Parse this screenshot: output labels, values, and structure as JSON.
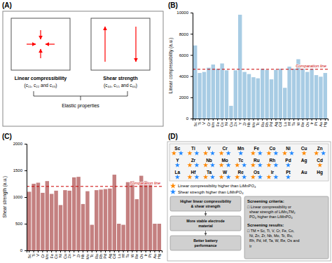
{
  "chart_data": [
    {
      "type": "diagram",
      "title": "(A)",
      "color": "red",
      "annotations": [
        "Linear compressibility",
        "(c₁₁, c₂₂ and c₃₃)",
        "Shear strength",
        "(c₄₄, c₅₅ and c₆₆)",
        "Elastic properties"
      ]
    },
    {
      "type": "bar",
      "title": "(B)",
      "categories": [
        "Sc",
        "Ti",
        "V",
        "Cr",
        "Mn",
        "Fe",
        "Co",
        "Ni",
        "Cu",
        "Zn",
        "Y",
        "Zr",
        "Nb",
        "Mo",
        "Tc",
        "Ru",
        "Rh",
        "Pd",
        "Ag",
        "Cd",
        "La",
        "Hf",
        "Ta",
        "W",
        "Re",
        "Os",
        "Ir",
        "Pt",
        "Au",
        "Hg"
      ],
      "values": [
        6900,
        4300,
        4400,
        4800,
        5100,
        4700,
        5200,
        4550,
        1200,
        4550,
        9800,
        4400,
        4200,
        3900,
        3800,
        4700,
        4600,
        3700,
        4600,
        4700,
        2900,
        4900,
        4700,
        5600,
        4700,
        4400,
        4700,
        4100,
        3950,
        4300
      ],
      "color": "#a8cce4",
      "ylabel": "Linear compressibility (a.u.)",
      "ylim": [
        0,
        10000
      ],
      "yticks": [
        0,
        2000,
        4000,
        6000,
        8000,
        10000
      ],
      "reference_line": {
        "value": 4650,
        "label": "Comparation line",
        "color": "#cc0000"
      }
    },
    {
      "type": "bar",
      "title": "(C)",
      "categories": [
        "Sc",
        "Ti",
        "V",
        "Cr",
        "Mn",
        "Fe",
        "Co",
        "Ni",
        "Cu",
        "Zn",
        "Y",
        "Zr",
        "Nb",
        "Mo",
        "Tc",
        "Ru",
        "Rh",
        "Pd",
        "Ag",
        "Cd",
        "La",
        "Hf",
        "Ta",
        "W",
        "Re",
        "Os",
        "Ir",
        "Pt",
        "Au",
        "Hg"
      ],
      "values": [
        1100,
        1250,
        1270,
        1080,
        1300,
        1060,
        1120,
        850,
        1130,
        1120,
        1370,
        1380,
        870,
        1110,
        480,
        1130,
        1140,
        1150,
        1160,
        1420,
        500,
        480,
        1280,
        1300,
        960,
        1400,
        1300,
        1260,
        500,
        500
      ],
      "color": "#c48080",
      "ylabel": "Shear strength (a.u.)",
      "ylim": [
        0,
        2000
      ],
      "yticks": [
        0,
        500,
        1000,
        1500,
        2000
      ],
      "reference_line": {
        "value": 1200,
        "label": "Comparation line",
        "color": "#cc0000"
      }
    },
    {
      "type": "table",
      "title": "(D)",
      "categories": [
        "Sc",
        "Ti",
        "V",
        "Cr",
        "Mn",
        "Fe",
        "Co",
        "Ni",
        "Cu",
        "Zn",
        "Y",
        "Zr",
        "Nb",
        "Mo",
        "Tc",
        "Ru",
        "Rh",
        "Pd",
        "Ag",
        "Cd",
        "La",
        "Hf",
        "Ta",
        "W",
        "Re",
        "Os",
        "Ir",
        "Pt",
        "Au",
        "Hg"
      ],
      "series": [
        {
          "name": "Linear compressibility higher than LiMnPO₄",
          "color": "#ff8800",
          "marker": "star",
          "values": [
            true,
            true,
            true,
            true,
            false,
            true,
            true,
            true,
            true,
            true,
            false,
            true,
            true,
            true,
            true,
            true,
            true,
            false,
            false,
            true,
            false,
            true,
            true,
            true,
            true,
            true,
            true,
            false,
            false,
            false
          ]
        },
        {
          "name": "Shear strength higher than LiMnPO₄",
          "color": "#2288ff",
          "marker": "star",
          "values": [
            true,
            true,
            true,
            true,
            true,
            true,
            true,
            true,
            false,
            true,
            true,
            true,
            true,
            true,
            true,
            true,
            true,
            true,
            false,
            false,
            true,
            true,
            true,
            true,
            true,
            true,
            true,
            true,
            false,
            false
          ]
        }
      ],
      "annotations": [
        "Higher linear compressibility\n& shear strength",
        "More stable electrode\nmaterial",
        "Better battery\nperformance",
        "Screening criteria:",
        "□ Linear compressibility or\n  shear strength of LiMn₂TM₂\n  PO₄ higher than LiMnPO₄",
        "Screening results:",
        "□ TM = Sc, Ti, V, Cr, Fe, Co,\n  Ni, Zn, Zr, Nb, Mo, Tc, Ru,\n  Rh, Pd, Hf, Ta, W, Re, Os and\n  Ir"
      ]
    }
  ]
}
